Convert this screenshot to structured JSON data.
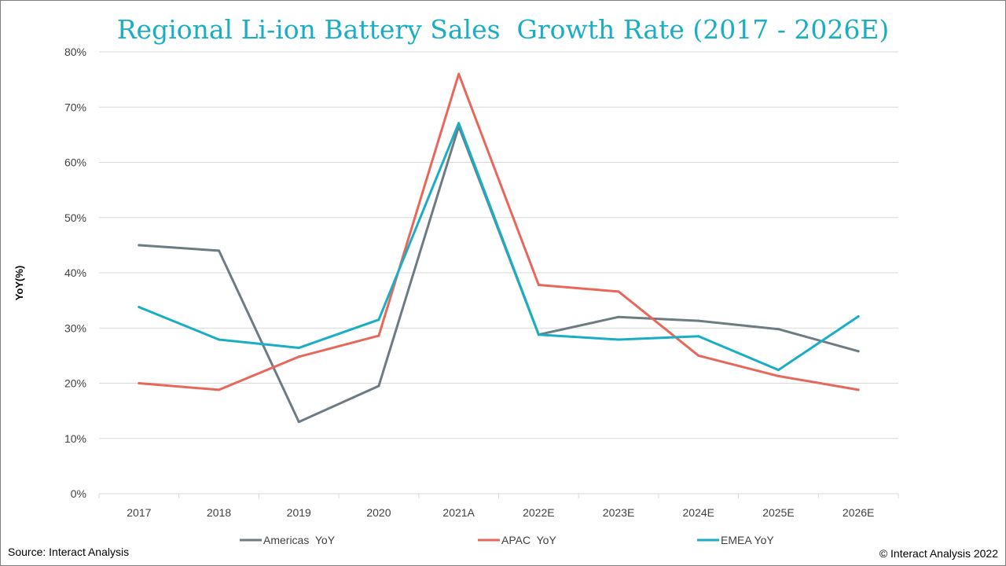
{
  "chart_data": {
    "type": "line",
    "title": "Regional Li-ion Battery Sales  Growth Rate (2017 - 2026E)",
    "xlabel": "",
    "ylabel": "YoY(%)",
    "ylim": [
      0,
      80
    ],
    "y_ticks": [
      "0%",
      "10%",
      "20%",
      "30%",
      "40%",
      "50%",
      "60%",
      "70%",
      "80%"
    ],
    "y_tick_values": [
      0,
      10,
      20,
      30,
      40,
      50,
      60,
      70,
      80
    ],
    "categories": [
      "2017",
      "2018",
      "2019",
      "2020",
      "2021A",
      "2022E",
      "2023E",
      "2024E",
      "2025E",
      "2026E"
    ],
    "grid": true,
    "legend_position": "bottom",
    "series": [
      {
        "name": "Americas  YoY",
        "color": "#6d7b83",
        "values": [
          45,
          44,
          13,
          19.5,
          66.5,
          28.8,
          32,
          31.3,
          29.8,
          25.8
        ]
      },
      {
        "name": "APAC  YoY",
        "color": "#e8675a",
        "values": [
          20,
          18.8,
          24.8,
          28.6,
          76,
          37.8,
          36.6,
          25,
          21.3,
          18.8
        ]
      },
      {
        "name": "EMEA YoY",
        "color": "#1aaec5",
        "values": [
          33.8,
          27.9,
          26.4,
          31.5,
          67.1,
          28.8,
          27.9,
          28.5,
          22.4,
          32.1
        ]
      }
    ]
  },
  "footer": {
    "source": "Source: Interact Analysis",
    "copyright": "© Interact Analysis 2022"
  }
}
